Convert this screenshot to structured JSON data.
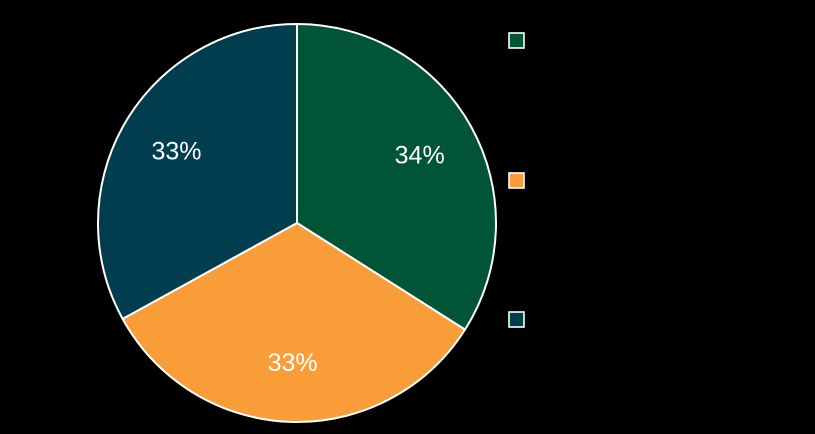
{
  "chart_data": {
    "type": "pie",
    "categories": [
      "",
      "",
      ""
    ],
    "values": [
      34,
      33,
      33
    ],
    "data_labels": [
      "34%",
      "33%",
      "33%"
    ],
    "colors": [
      "#005537",
      "#F89D38",
      "#003E4F"
    ],
    "start_angle_deg": 0,
    "direction": "clockwise",
    "legend": "right",
    "background": "#000000",
    "slice_border_color": "#ffffff"
  }
}
